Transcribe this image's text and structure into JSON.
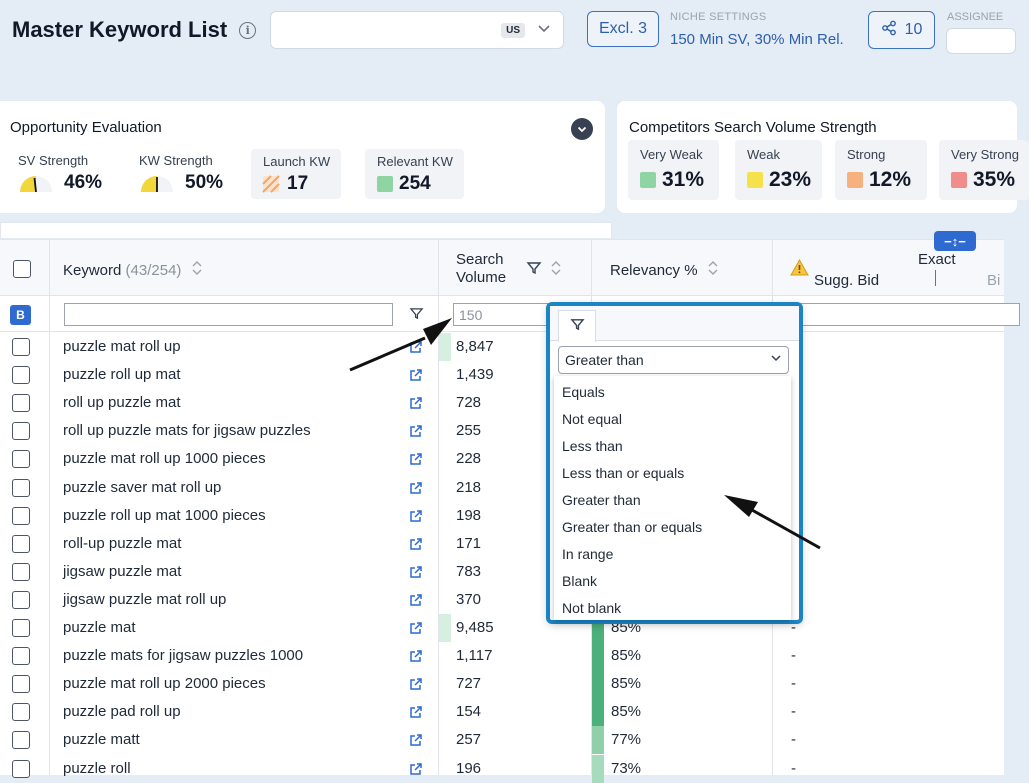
{
  "header": {
    "title": "Master Keyword List",
    "info_icon": "i",
    "market_badge": "US",
    "excl_label": "Excl. 3",
    "niche_label": "NICHE SETTINGS",
    "niche_value": "150 Min SV, 30% Min Rel.",
    "share_count": "10",
    "assignee_label": "ASSIGNEE"
  },
  "opportunity": {
    "title": "Opportunity Evaluation",
    "sv_label": "SV Strength",
    "sv_value": "46%",
    "kw_label": "KW Strength",
    "kw_value": "50%",
    "launch_label": "Launch KW",
    "launch_value": "17",
    "relevant_label": "Relevant KW",
    "relevant_value": "254"
  },
  "competitors": {
    "title": "Competitors Search Volume Strength",
    "tiles": [
      {
        "label": "Very Weak",
        "value": "31%",
        "color": "#8fd4a3"
      },
      {
        "label": "Weak",
        "value": "23%",
        "color": "#f5e24a"
      },
      {
        "label": "Strong",
        "value": "12%",
        "color": "#f6b27d"
      },
      {
        "label": "Very Strong",
        "value": "35%",
        "color": "#f08c8c"
      }
    ]
  },
  "table": {
    "keyword_header": "Keyword",
    "keyword_count": "(43/254)",
    "sv_header_1": "Search",
    "sv_header_2": "Volume",
    "relevancy_header": "Relevancy %",
    "bid_header": "Sugg. Bid",
    "exact_header": "Exact",
    "bid_sub": "Bi",
    "exact_toggle": "−↕−",
    "filter_badge": "B",
    "sv_filter_value": "150",
    "rows": [
      {
        "keyword": "puzzle mat roll up",
        "sv": "8,847",
        "rel": "",
        "bid": ""
      },
      {
        "keyword": "puzzle roll up mat",
        "sv": "1,439",
        "rel": "",
        "bid": ""
      },
      {
        "keyword": "roll up puzzle mat",
        "sv": "728",
        "rel": "",
        "bid": ""
      },
      {
        "keyword": "roll up puzzle mats for jigsaw puzzles",
        "sv": "255",
        "rel": "",
        "bid": ""
      },
      {
        "keyword": "puzzle mat roll up 1000 pieces",
        "sv": "228",
        "rel": "",
        "bid": ""
      },
      {
        "keyword": "puzzle saver mat roll up",
        "sv": "218",
        "rel": "",
        "bid": ""
      },
      {
        "keyword": "puzzle roll up mat 1000 pieces",
        "sv": "198",
        "rel": "",
        "bid": "-"
      },
      {
        "keyword": "roll-up puzzle mat",
        "sv": "171",
        "rel": "",
        "bid": "-"
      },
      {
        "keyword": "jigsaw puzzle mat",
        "sv": "783",
        "rel": "",
        "bid": "-"
      },
      {
        "keyword": "jigsaw puzzle mat roll up",
        "sv": "370",
        "rel": "",
        "bid": "-"
      },
      {
        "keyword": "puzzle mat",
        "sv": "9,485",
        "rel": "85%",
        "bid": "-"
      },
      {
        "keyword": "puzzle mats for jigsaw puzzles 1000",
        "sv": "1,117",
        "rel": "85%",
        "bid": "-"
      },
      {
        "keyword": "puzzle mat roll up 2000 pieces",
        "sv": "727",
        "rel": "85%",
        "bid": "-"
      },
      {
        "keyword": "puzzle pad roll up",
        "sv": "154",
        "rel": "85%",
        "bid": "-"
      },
      {
        "keyword": "puzzle matt",
        "sv": "257",
        "rel": "77%",
        "bid": "-"
      },
      {
        "keyword": "puzzle roll",
        "sv": "196",
        "rel": "73%",
        "bid": "-"
      }
    ]
  },
  "filter_popup": {
    "selected": "Greater than",
    "options": [
      "Equals",
      "Not equal",
      "Less than",
      "Less than or equals",
      "Greater than",
      "Greater than or equals",
      "In range",
      "Blank",
      "Not blank"
    ]
  },
  "icons": {
    "info": "info-icon",
    "share": "share-icon",
    "filter": "filter-icon",
    "external": "external-link-icon",
    "warning": "warning-icon",
    "chevron": "chevron-down-icon",
    "sort": "sort-icon"
  },
  "colors": {
    "accent": "#2f6ad0",
    "popup_border": "#1a84c7",
    "relevancy_high": "#4bb07a",
    "relevancy_mid": "#a6dcbc"
  }
}
